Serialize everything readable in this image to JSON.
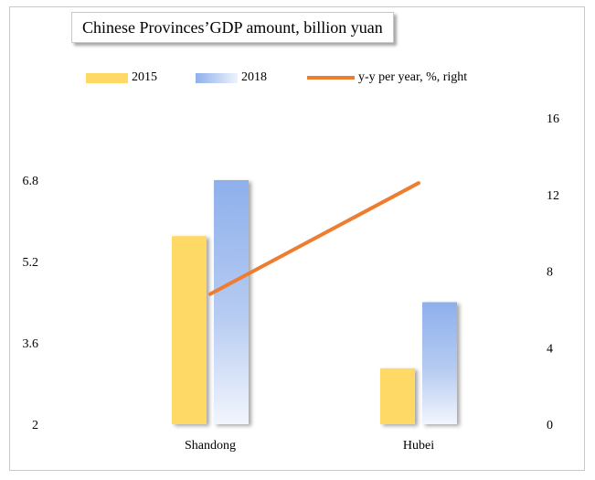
{
  "chart_data": {
    "type": "bar",
    "title": "Chinese Provinces’GDP amount, billion yuan",
    "categories": [
      "Shandong",
      "Hubei"
    ],
    "series": [
      {
        "name": "2015",
        "kind": "bar",
        "axis": "left",
        "values": [
          5.7,
          3.1
        ],
        "color": "#ffd966"
      },
      {
        "name": "2018",
        "kind": "bar",
        "axis": "left",
        "values": [
          6.8,
          4.4
        ],
        "color": "#8eb0ec"
      },
      {
        "name": "y-y per year, %, right",
        "kind": "line",
        "axis": "right",
        "values": [
          6.8,
          12.6
        ],
        "color": "#ed7d31"
      }
    ],
    "y_left": {
      "min": 2,
      "max": 6.8,
      "ticks": [
        "2",
        "3.6",
        "5.2",
        "6.8"
      ]
    },
    "y_right": {
      "min": 0,
      "max": 16,
      "ticks": [
        "0",
        "4",
        "8",
        "12",
        "16"
      ]
    },
    "grid": false,
    "legend_position": "top"
  }
}
